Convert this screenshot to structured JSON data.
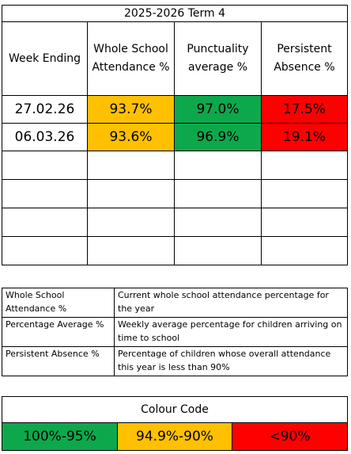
{
  "colors": {
    "green": "#0da84c",
    "amber": "#ffc000",
    "red": "#ff0000",
    "border": "#000000"
  },
  "attendance": {
    "title": "2025-2026 Term 4",
    "headers": {
      "week_ending": "Week Ending",
      "whole_school_attendance": "Whole School Attendance %",
      "punctuality": "Punctuality average %",
      "persistent_absence": "Persistent Absence %"
    },
    "rows": [
      {
        "week": "27.02.26",
        "attendance": "93.7%",
        "punctuality": "97.0%",
        "persistent": "17.5%"
      },
      {
        "week": "06.03.26",
        "attendance": "93.6%",
        "punctuality": "96.9%",
        "persistent": "19.1%"
      }
    ]
  },
  "definitions": [
    {
      "term": "Whole School Attendance %",
      "description": "Current whole school attendance percentage for the year"
    },
    {
      "term": "Percentage Average %",
      "description": "Weekly average percentage for children arriving on time to school"
    },
    {
      "term": "Persistent Absence %",
      "description": "Percentage of children whose overall attendance this year is less than 90%"
    }
  ],
  "colour_code": {
    "title": "Colour Code",
    "green_label": "100%-95%",
    "amber_label": "94.9%-90%",
    "red_label": "<90%"
  }
}
